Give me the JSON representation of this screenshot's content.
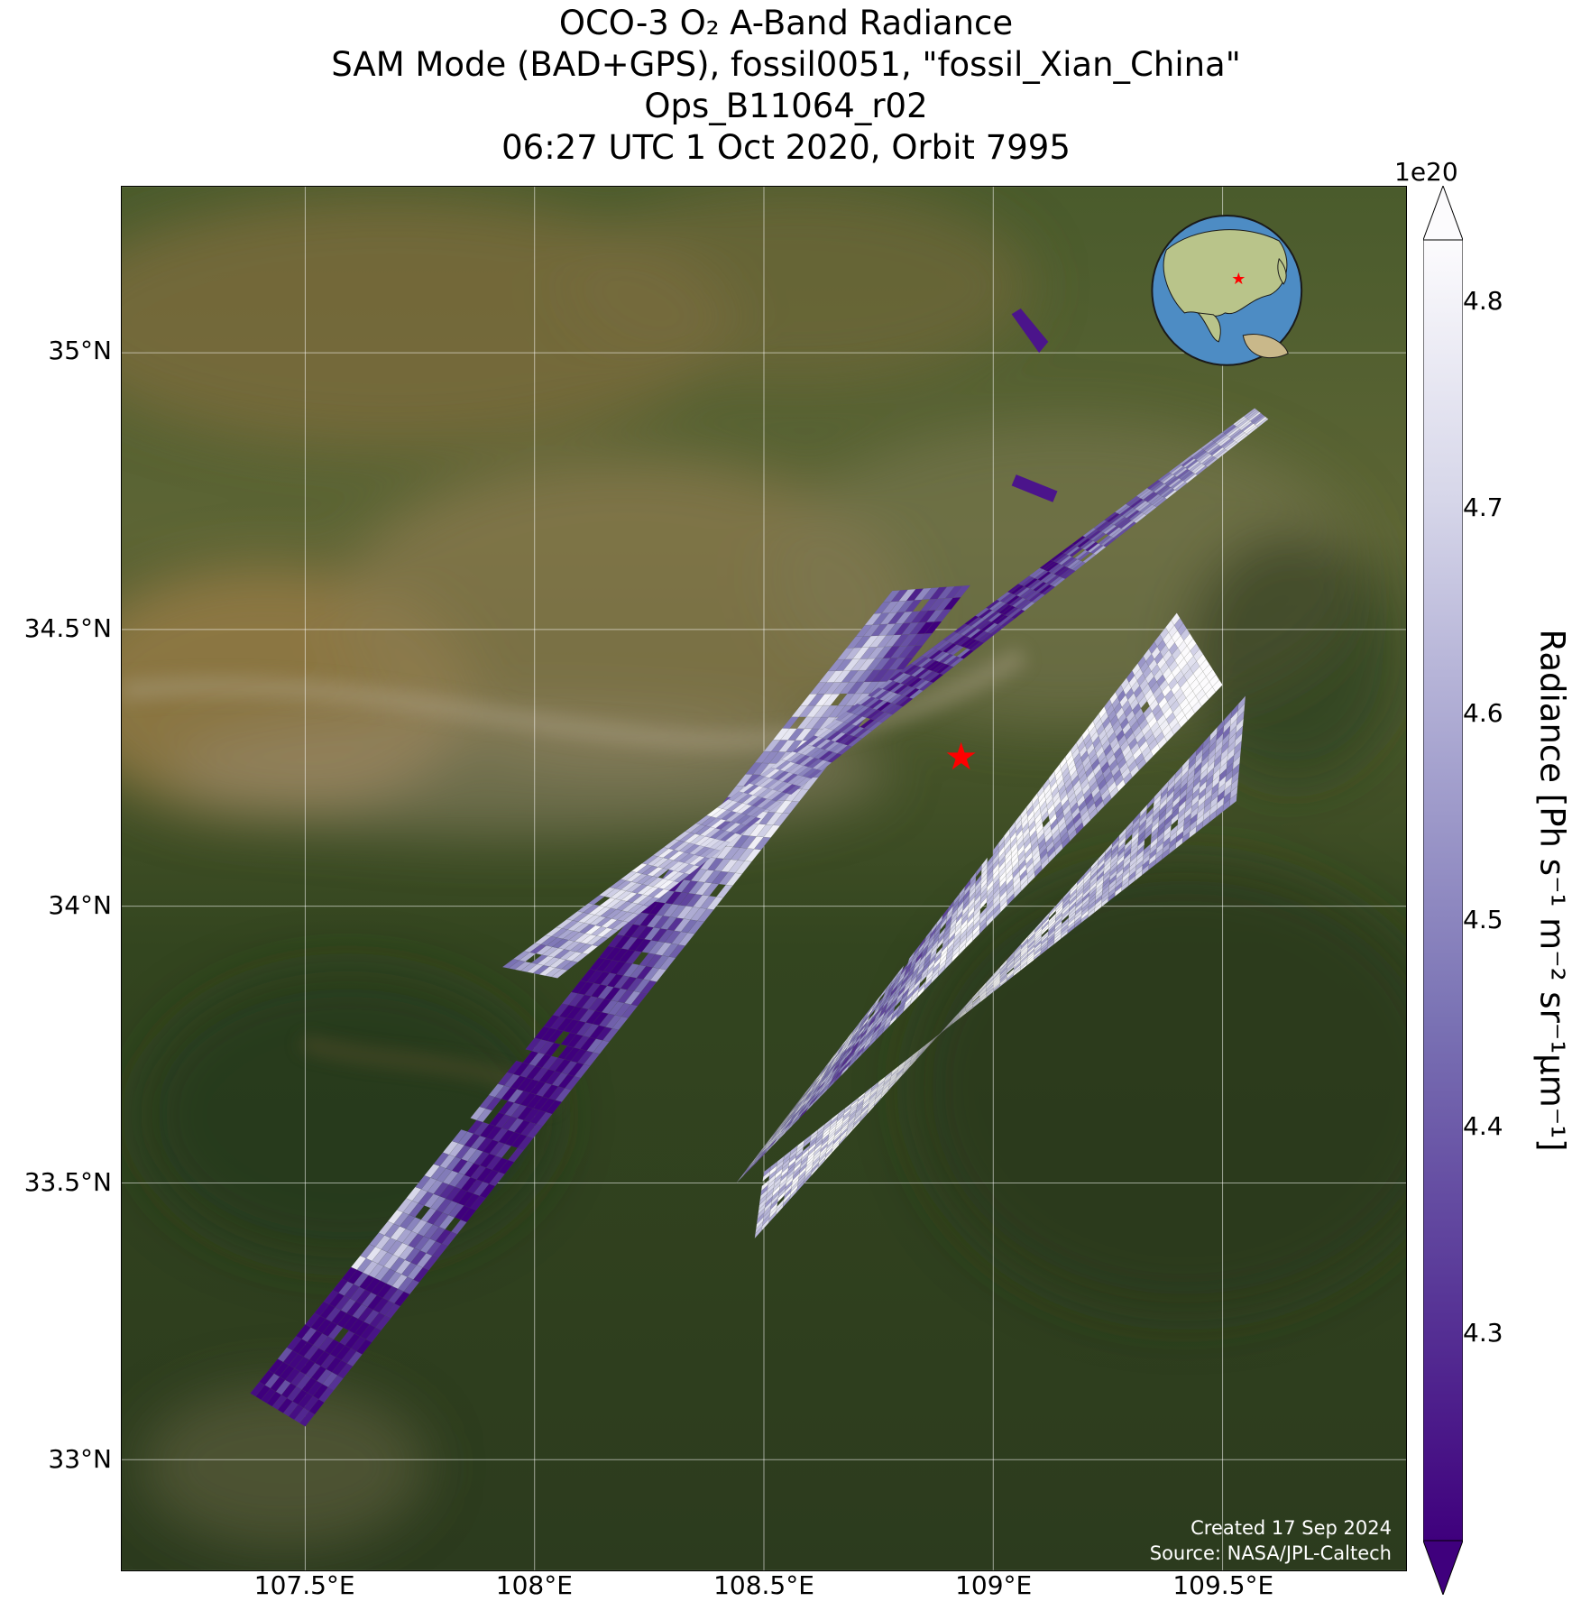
{
  "title": {
    "line1": "OCO-3 O₂ A-Band Radiance",
    "line2": "SAM Mode (BAD+GPS), fossil0051, \"fossil_Xian_China\"",
    "line3": "Ops_B11064_r02",
    "line4": "06:27 UTC 1 Oct 2020, Orbit 7995"
  },
  "map": {
    "xlim": [
      107.1,
      109.9
    ],
    "ylim": [
      32.8,
      35.3
    ],
    "x_ticks": [
      107.5,
      108.0,
      108.5,
      109.0,
      109.5
    ],
    "x_tick_labels": [
      "107.5°E",
      "108°E",
      "108.5°E",
      "109°E",
      "109.5°E"
    ],
    "y_ticks": [
      33.0,
      33.5,
      34.0,
      34.5,
      35.0
    ],
    "y_tick_labels": [
      "33°N",
      "33.5°N",
      "34°N",
      "34.5°N",
      "35°N"
    ],
    "grid": true,
    "target": {
      "name": "fossil_Xian_China",
      "lon": 108.93,
      "lat": 34.27,
      "marker": "red-star"
    },
    "swaths": [
      {
        "corners_lon_lat": [
          [
            107.38,
            33.12
          ],
          [
            108.78,
            34.57
          ],
          [
            108.95,
            34.58
          ],
          [
            107.5,
            33.06
          ]
        ]
      },
      {
        "corners_lon_lat": [
          [
            107.93,
            33.89
          ],
          [
            109.57,
            34.9
          ],
          [
            109.6,
            34.88
          ],
          [
            108.05,
            33.87
          ]
        ]
      },
      {
        "corners_lon_lat": [
          [
            108.55,
            33.62
          ],
          [
            109.4,
            34.53
          ],
          [
            109.5,
            34.4
          ],
          [
            108.44,
            33.5
          ]
        ]
      },
      {
        "corners_lon_lat": [
          [
            108.48,
            33.4
          ],
          [
            109.55,
            34.38
          ],
          [
            109.53,
            34.19
          ],
          [
            108.5,
            33.52
          ]
        ]
      }
    ],
    "background": {
      "land_color": "#2e3d1f",
      "loess_color": "#8a7243",
      "valley_color": "#9c8c6d"
    }
  },
  "colorbar": {
    "label": "Radiance [Ph s⁻¹ m⁻² sr⁻¹μm⁻¹]",
    "multiplier": "1e20",
    "min": 4.2,
    "max": 4.83,
    "ticks": [
      4.3,
      4.4,
      4.5,
      4.6,
      4.7,
      4.8
    ],
    "tick_labels": [
      "4.3",
      "4.4",
      "4.5",
      "4.6",
      "4.7",
      "4.8"
    ],
    "colormap": "Purples",
    "color_low": "#3f007d",
    "color_high": "#fcfbfd",
    "extend": "both"
  },
  "inset_globe": {
    "center": "Asia",
    "marker": "red-star",
    "ocean_color": "#4d8cc4",
    "land_color": "#b9c48a"
  },
  "credits": {
    "created": "Created 17 Sep 2024",
    "source": "Source: NASA/JPL-Caltech"
  }
}
